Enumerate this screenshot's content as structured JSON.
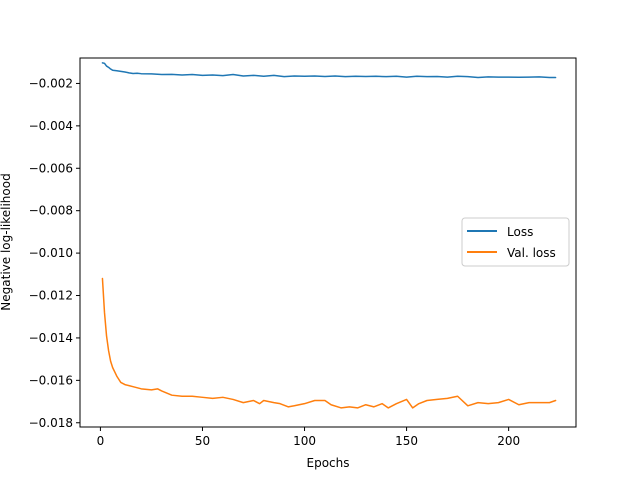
{
  "chart_data": {
    "type": "line",
    "title": "",
    "xlabel": "Epochs",
    "ylabel": "Negative log-likelihood",
    "xlim": [
      -10,
      233
    ],
    "ylim": [
      -0.0182,
      -0.0008
    ],
    "xticks": [
      0,
      50,
      100,
      150,
      200
    ],
    "xtick_labels": [
      "0",
      "50",
      "100",
      "150",
      "200"
    ],
    "yticks": [
      -0.018,
      -0.016,
      -0.014,
      -0.012,
      -0.01,
      -0.008,
      -0.006,
      -0.004,
      -0.002
    ],
    "ytick_labels": [
      "−0.018",
      "−0.016",
      "−0.014",
      "−0.012",
      "−0.010",
      "−0.008",
      "−0.006",
      "−0.004",
      "−0.002"
    ],
    "grid": false,
    "legend_position": "center-right",
    "series": [
      {
        "name": "Loss",
        "color": "#1f77b4",
        "x": [
          1,
          2,
          3,
          4,
          5,
          6,
          8,
          10,
          12,
          14,
          16,
          18,
          20,
          25,
          30,
          35,
          40,
          45,
          50,
          55,
          60,
          65,
          70,
          75,
          80,
          85,
          90,
          95,
          100,
          105,
          110,
          115,
          120,
          125,
          130,
          135,
          140,
          145,
          150,
          155,
          160,
          165,
          170,
          175,
          180,
          185,
          190,
          195,
          200,
          205,
          210,
          215,
          220,
          223
        ],
        "y": [
          -0.00103,
          -0.00105,
          -0.00118,
          -0.00124,
          -0.00132,
          -0.00138,
          -0.0014,
          -0.00143,
          -0.00146,
          -0.0015,
          -0.00153,
          -0.00152,
          -0.00154,
          -0.00155,
          -0.00158,
          -0.00157,
          -0.0016,
          -0.00158,
          -0.00162,
          -0.0016,
          -0.00163,
          -0.00158,
          -0.00165,
          -0.00162,
          -0.00166,
          -0.00162,
          -0.00168,
          -0.00165,
          -0.00166,
          -0.00165,
          -0.00167,
          -0.00165,
          -0.00168,
          -0.00166,
          -0.00167,
          -0.00166,
          -0.00168,
          -0.00166,
          -0.0017,
          -0.00166,
          -0.00168,
          -0.00167,
          -0.0017,
          -0.00166,
          -0.00168,
          -0.00172,
          -0.00169,
          -0.0017,
          -0.0017,
          -0.00171,
          -0.0017,
          -0.00169,
          -0.00172,
          -0.00172
        ]
      },
      {
        "name": "Val. loss",
        "color": "#ff7f0e",
        "x": [
          1,
          2,
          3,
          4,
          5,
          6,
          7,
          8,
          10,
          12,
          14,
          16,
          20,
          25,
          28,
          30,
          35,
          40,
          45,
          50,
          55,
          60,
          65,
          70,
          75,
          78,
          80,
          85,
          88,
          92,
          95,
          100,
          105,
          110,
          113,
          118,
          122,
          126,
          130,
          134,
          138,
          141,
          145,
          150,
          153,
          156,
          160,
          165,
          170,
          175,
          180,
          185,
          190,
          195,
          200,
          205,
          210,
          215,
          220,
          223
        ],
        "y": [
          -0.0112,
          -0.0128,
          -0.0139,
          -0.0146,
          -0.0151,
          -0.0154,
          -0.0156,
          -0.0158,
          -0.0161,
          -0.0162,
          -0.01625,
          -0.0163,
          -0.0164,
          -0.01645,
          -0.0164,
          -0.0165,
          -0.0167,
          -0.01675,
          -0.01675,
          -0.0168,
          -0.01685,
          -0.0168,
          -0.0169,
          -0.01705,
          -0.01695,
          -0.0171,
          -0.01695,
          -0.01705,
          -0.0171,
          -0.01725,
          -0.0172,
          -0.0171,
          -0.01695,
          -0.01695,
          -0.01715,
          -0.0173,
          -0.01725,
          -0.0173,
          -0.01715,
          -0.01725,
          -0.0171,
          -0.0173,
          -0.0171,
          -0.0169,
          -0.0173,
          -0.0171,
          -0.01695,
          -0.0169,
          -0.01685,
          -0.01675,
          -0.0172,
          -0.01705,
          -0.0171,
          -0.01705,
          -0.0169,
          -0.01715,
          -0.01705,
          -0.01705,
          -0.01705,
          -0.01695
        ]
      }
    ]
  }
}
